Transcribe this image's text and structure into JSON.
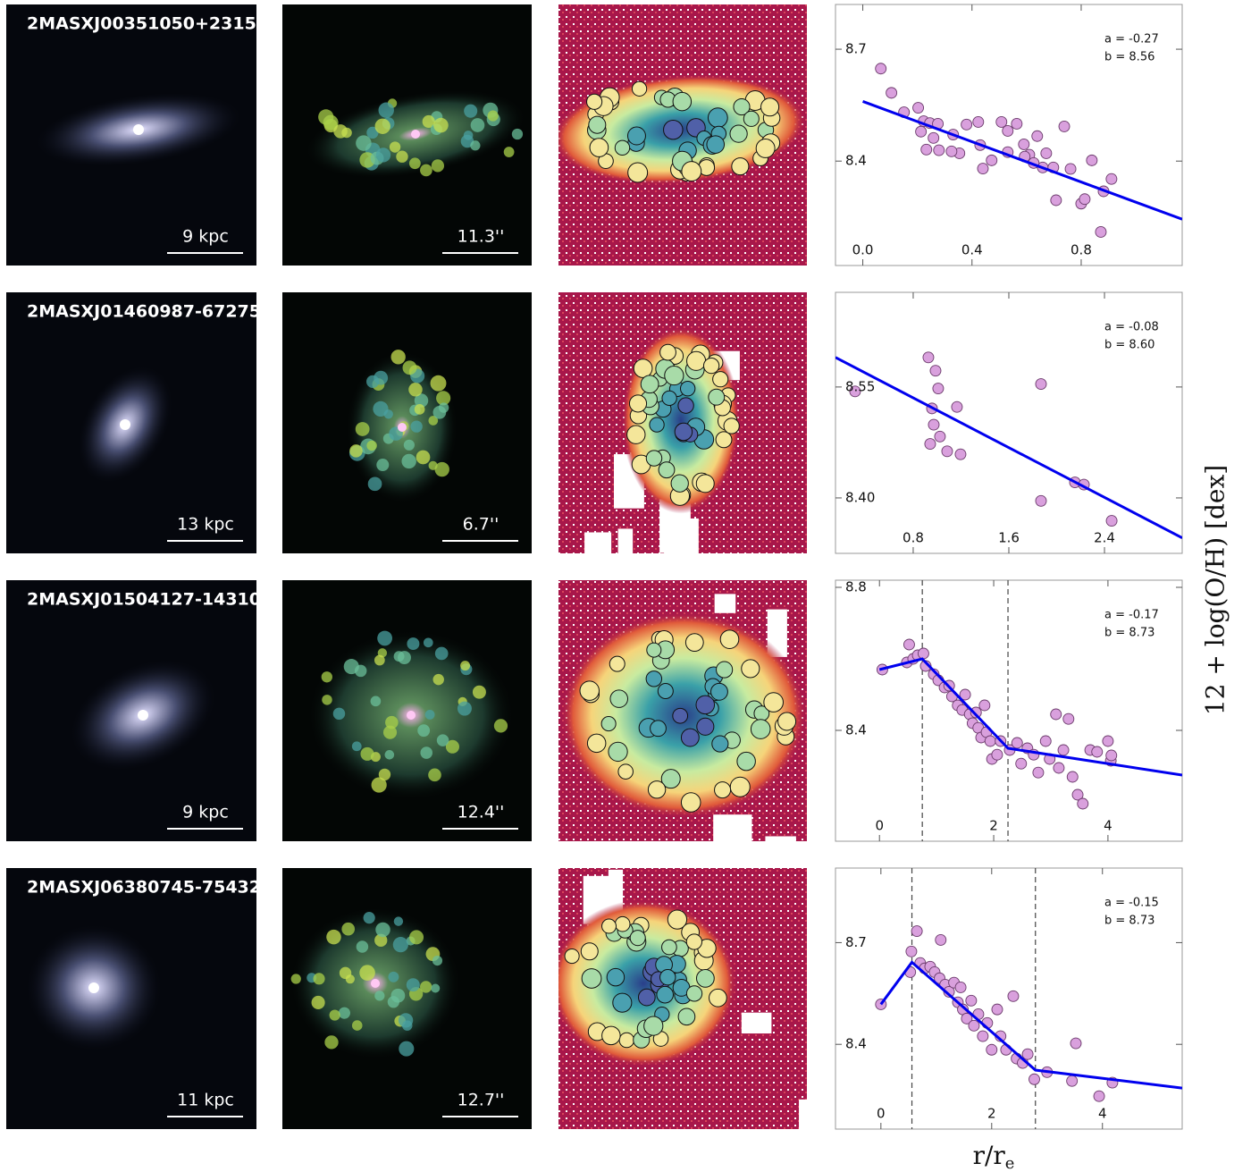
{
  "shared": {
    "ylabel": "12 + log(O/H) [dex]",
    "xlabel": {
      "main": "r/r",
      "sub": "e"
    }
  },
  "panels": [
    {
      "name": "2MASXJ00351050+2315",
      "scale_physical": "9 kpc",
      "scale_angular": "11.3''"
    },
    {
      "name": "2MASXJ01460987-67275",
      "scale_physical": "13 kpc",
      "scale_angular": "6.7''"
    },
    {
      "name": "2MASXJ01504127-14310",
      "scale_physical": "9 kpc",
      "scale_angular": "12.4''"
    },
    {
      "name": "2MASXJ06380745-75432",
      "scale_physical": "11 kpc",
      "scale_angular": "12.7''"
    }
  ],
  "chart_data": [
    {
      "type": "scatter",
      "annotations": [
        "a = -0.27",
        "b = 8.56"
      ],
      "xlim": [
        -0.1,
        1.17
      ],
      "ylim": [
        8.12,
        8.82
      ],
      "xticks": [
        {
          "value": 0,
          "label": "0.0"
        },
        0.4,
        0.8
      ],
      "yticks": [
        8.4,
        8.7
      ],
      "color": "#d9a0dd",
      "x": [
        0.066,
        0.105,
        0.151,
        0.203,
        0.223,
        0.246,
        0.275,
        0.213,
        0.233,
        0.279,
        0.331,
        0.354,
        0.38,
        0.423,
        0.43,
        0.508,
        0.531,
        0.531,
        0.564,
        0.61,
        0.59,
        0.639,
        0.593,
        0.659,
        0.698,
        0.708,
        0.738,
        0.761,
        0.8,
        0.813,
        0.839,
        0.872,
        0.882,
        0.911,
        0.325,
        0.472,
        0.44,
        0.626,
        0.672,
        0.259
      ],
      "y": [
        8.648,
        8.583,
        8.531,
        8.543,
        8.507,
        8.502,
        8.5,
        8.479,
        8.431,
        8.429,
        8.471,
        8.421,
        8.498,
        8.505,
        8.443,
        8.505,
        8.481,
        8.424,
        8.5,
        8.417,
        8.445,
        8.467,
        8.412,
        8.383,
        8.383,
        8.295,
        8.493,
        8.379,
        8.286,
        8.298,
        8.402,
        8.21,
        8.319,
        8.352,
        8.426,
        8.402,
        8.38,
        8.395,
        8.421,
        8.462
      ],
      "fit": {
        "color": "#0000ee",
        "x": [
          0,
          1.17
        ],
        "y": [
          8.56,
          8.244
        ]
      },
      "breaks": []
    },
    {
      "type": "scatter",
      "annotations": [
        "a = -0.08",
        "b = 8.60"
      ],
      "xlim": [
        0.15,
        3.05
      ],
      "ylim": [
        8.325,
        8.678
      ],
      "xticks": [
        0.8,
        1.6,
        2.4
      ],
      "yticks": [
        {
          "value": 8.4,
          "label": "8.40"
        },
        8.55
      ],
      "color": "#d9a0dd",
      "x": [
        0.314,
        0.927,
        0.987,
        1.009,
        0.957,
        0.972,
        1.024,
        1.084,
        1.196,
        1.166,
        0.942,
        1.869,
        1.869,
        2.153,
        2.228,
        2.46
      ],
      "y": [
        8.544,
        8.59,
        8.572,
        8.548,
        8.521,
        8.499,
        8.483,
        8.463,
        8.459,
        8.523,
        8.473,
        8.554,
        8.396,
        8.421,
        8.418,
        8.369
      ],
      "fit": {
        "color": "#0000ee",
        "x": [
          0.15,
          3.05
        ],
        "y": [
          8.59,
          8.346
        ]
      },
      "breaks": []
    },
    {
      "type": "scatter",
      "annotations": [
        "a = -0.17",
        "b = 8.73"
      ],
      "xlim": [
        -0.77,
        5.3
      ],
      "ylim": [
        8.09,
        8.82
      ],
      "xticks": [
        0,
        2,
        4
      ],
      "yticks": [
        8.4,
        8.8
      ],
      "color": "#d9a0dd",
      "x": [
        0.05,
        0.52,
        0.48,
        0.59,
        0.67,
        0.77,
        0.81,
        0.95,
        1.03,
        1.14,
        1.22,
        1.27,
        1.37,
        1.45,
        1.5,
        1.58,
        1.63,
        1.69,
        1.73,
        1.78,
        1.84,
        1.875,
        1.94,
        1.97,
        2.06,
        2.12,
        2.28,
        2.41,
        2.48,
        2.59,
        2.7,
        2.78,
        2.91,
        2.98,
        3.09,
        3.14,
        3.22,
        3.31,
        3.38,
        3.47,
        3.56,
        3.69,
        3.81,
        4.0,
        4.05,
        4.06
      ],
      "y": [
        8.57,
        8.64,
        8.59,
        8.6,
        8.61,
        8.615,
        8.58,
        8.557,
        8.54,
        8.52,
        8.525,
        8.495,
        8.47,
        8.457,
        8.5,
        8.445,
        8.42,
        8.45,
        8.407,
        8.38,
        8.47,
        8.395,
        8.37,
        8.32,
        8.332,
        8.37,
        8.345,
        8.365,
        8.307,
        8.35,
        8.332,
        8.282,
        8.37,
        8.32,
        8.445,
        8.295,
        8.345,
        8.432,
        8.27,
        8.22,
        8.195,
        8.345,
        8.34,
        8.37,
        8.315,
        8.33
      ],
      "fit": {
        "color": "#0000ee",
        "x": [
          0,
          0.75,
          2.25,
          5.3
        ],
        "y": [
          8.57,
          8.6,
          8.35,
          8.275
        ]
      },
      "breaks": [
        0.75,
        2.25
      ]
    },
    {
      "type": "scatter",
      "annotations": [
        "a = -0.15",
        "b = 8.73"
      ],
      "xlim": [
        -0.82,
        5.44
      ],
      "ylim": [
        8.15,
        8.92
      ],
      "xticks": [
        0,
        2,
        4
      ],
      "yticks": [
        8.4,
        8.7
      ],
      "color": "#d9a0dd",
      "x": [
        0,
        0.65,
        0.55,
        0.53,
        0.71,
        0.79,
        0.89,
        0.97,
        1.08,
        1.06,
        1.16,
        1.23,
        1.32,
        1.39,
        1.44,
        1.48,
        1.55,
        1.63,
        1.68,
        1.76,
        1.84,
        1.92,
        2.0,
        2.1,
        2.16,
        2.26,
        2.39,
        2.45,
        2.56,
        2.65,
        2.77,
        3.0,
        3.45,
        3.52,
        3.94,
        4.18
      ],
      "y": [
        8.518,
        8.734,
        8.674,
        8.613,
        8.64,
        8.624,
        8.629,
        8.613,
        8.708,
        8.595,
        8.576,
        8.555,
        8.582,
        8.524,
        8.568,
        8.503,
        8.476,
        8.529,
        8.455,
        8.489,
        8.424,
        8.463,
        8.384,
        8.503,
        8.424,
        8.384,
        8.542,
        8.358,
        8.345,
        8.371,
        8.297,
        8.318,
        8.292,
        8.403,
        8.247,
        8.287
      ],
      "fit": {
        "color": "#0000ee",
        "x": [
          0,
          0.56,
          2.79,
          5.44
        ],
        "y": [
          8.518,
          8.642,
          8.324,
          8.271
        ]
      },
      "breaks": [
        0.56,
        2.79
      ]
    }
  ]
}
